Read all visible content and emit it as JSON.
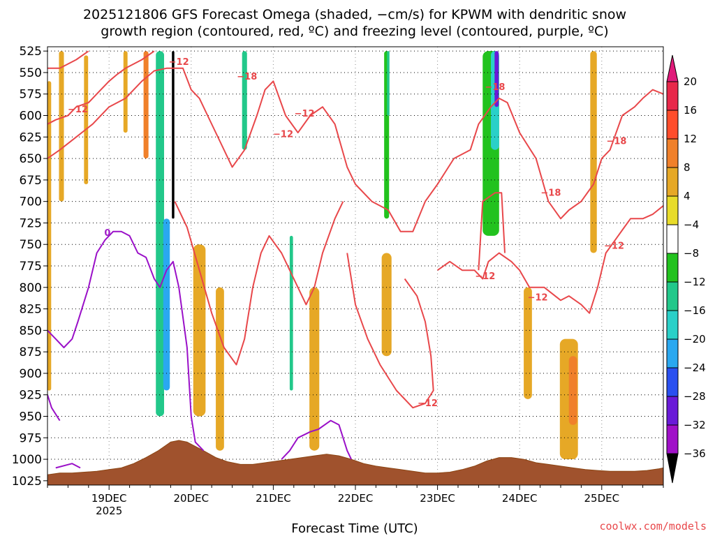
{
  "chart_data": {
    "type": "heatmap",
    "title_line1": "2025121806 GFS Forecast Omega (shaded, −cm/s) for KPWM with dendritic snow",
    "title_line2": "growth region (contoured, red, ºC) and freezing level (contoured, purple, ºC)",
    "xlabel": "Forecast Time (UTC)",
    "credit": "coolwx.com/models",
    "y_ticks": [
      "525",
      "550",
      "575",
      "600",
      "625",
      "650",
      "675",
      "700",
      "725",
      "750",
      "775",
      "800",
      "825",
      "850",
      "875",
      "900",
      "925",
      "950",
      "975",
      "1000",
      "1025"
    ],
    "y_range_hpa": [
      525,
      1025
    ],
    "x_range_days": [
      18.25,
      25.75
    ],
    "x_ticks": [
      {
        "day": 19,
        "label": "19DEC",
        "sub": "2025"
      },
      {
        "day": 20,
        "label": "20DEC",
        "sub": ""
      },
      {
        "day": 21,
        "label": "21DEC",
        "sub": ""
      },
      {
        "day": 22,
        "label": "22DEC",
        "sub": ""
      },
      {
        "day": 23,
        "label": "23DEC",
        "sub": ""
      },
      {
        "day": 24,
        "label": "24DEC",
        "sub": ""
      },
      {
        "day": 25,
        "label": "25DEC",
        "sub": ""
      }
    ],
    "colorbar": {
      "labels": [
        "20",
        "16",
        "12",
        "8",
        "4",
        "−4",
        "−8",
        "−12",
        "−16",
        "−20",
        "−24",
        "−28",
        "−32",
        "−36"
      ],
      "colors": [
        "#e8284a",
        "#ff4d2b",
        "#f0802a",
        "#e6a826",
        "#e8dc2a",
        "#ffffff",
        "#22c21e",
        "#22c88a",
        "#2ad0c8",
        "#2aa8f0",
        "#2a50f0",
        "#6a1ad8",
        "#a010c8",
        "#b0b0b0",
        "#000000"
      ],
      "top_color": "#e01a7a"
    },
    "contour_labels": [
      {
        "text": "−12",
        "day": 19.85,
        "p": 538,
        "color": "#e8474a"
      },
      {
        "text": "−12",
        "day": 18.62,
        "p": 593,
        "color": "#e8474a"
      },
      {
        "text": "−18",
        "day": 20.68,
        "p": 555,
        "color": "#e8474a"
      },
      {
        "text": "−12",
        "day": 21.12,
        "p": 622,
        "color": "#e8474a"
      },
      {
        "text": "−12",
        "day": 21.38,
        "p": 598,
        "color": "#e8474a"
      },
      {
        "text": "−18",
        "day": 23.7,
        "p": 567,
        "color": "#e8474a"
      },
      {
        "text": "−18",
        "day": 25.18,
        "p": 630,
        "color": "#e8474a"
      },
      {
        "text": "−18",
        "day": 24.38,
        "p": 690,
        "color": "#e8474a"
      },
      {
        "text": "−12",
        "day": 25.15,
        "p": 752,
        "color": "#e8474a"
      },
      {
        "text": "−12",
        "day": 23.58,
        "p": 787,
        "color": "#e8474a"
      },
      {
        "text": "−12",
        "day": 24.22,
        "p": 812,
        "color": "#e8474a"
      },
      {
        "text": "−12",
        "day": 22.88,
        "p": 935,
        "color": "#e8474a"
      },
      {
        "text": "0",
        "day": 18.98,
        "p": 737,
        "color": "#a020c8"
      }
    ],
    "shading_blobs": [
      {
        "day": 18.42,
        "p1": 525,
        "p2": 700,
        "w": 0.06,
        "v": 8
      },
      {
        "day": 18.27,
        "p1": 560,
        "p2": 920,
        "w": 0.05,
        "v": 5
      },
      {
        "day": 18.72,
        "p1": 530,
        "p2": 680,
        "w": 0.05,
        "v": 5
      },
      {
        "day": 19.2,
        "p1": 525,
        "p2": 620,
        "w": 0.05,
        "v": 5
      },
      {
        "day": 19.55,
        "p1": 525,
        "p2": 960,
        "w": 0.22,
        "v": -6
      },
      {
        "day": 19.62,
        "p1": 525,
        "p2": 950,
        "w": 0.1,
        "v": -14
      },
      {
        "day": 19.7,
        "p1": 720,
        "p2": 920,
        "w": 0.08,
        "v": -22
      },
      {
        "day": 19.78,
        "p1": 525,
        "p2": 720,
        "w": 0.03,
        "v": -38
      },
      {
        "day": 19.45,
        "p1": 525,
        "p2": 650,
        "w": 0.06,
        "v": 9
      },
      {
        "day": 20.1,
        "p1": 750,
        "p2": 950,
        "w": 0.15,
        "v": 6
      },
      {
        "day": 20.35,
        "p1": 800,
        "p2": 990,
        "w": 0.1,
        "v": 5
      },
      {
        "day": 20.6,
        "p1": 525,
        "p2": 720,
        "w": 0.16,
        "v": -7
      },
      {
        "day": 20.65,
        "p1": 525,
        "p2": 640,
        "w": 0.06,
        "v": -13
      },
      {
        "day": 21.2,
        "p1": 525,
        "p2": 950,
        "w": 0.12,
        "v": -7
      },
      {
        "day": 21.22,
        "p1": 740,
        "p2": 920,
        "w": 0.04,
        "v": -14
      },
      {
        "day": 21.5,
        "p1": 800,
        "p2": 990,
        "w": 0.12,
        "v": 5
      },
      {
        "day": 21.9,
        "p1": 525,
        "p2": 640,
        "w": 0.05,
        "v": -7
      },
      {
        "day": 22.38,
        "p1": 760,
        "p2": 880,
        "w": 0.12,
        "v": 6
      },
      {
        "day": 22.38,
        "p1": 525,
        "p2": 720,
        "w": 0.06,
        "v": -8
      },
      {
        "day": 22.4,
        "p1": 525,
        "p2": 600,
        "w": 0.03,
        "v": -14
      },
      {
        "day": 23.65,
        "p1": 525,
        "p2": 740,
        "w": 0.2,
        "v": -8
      },
      {
        "day": 23.7,
        "p1": 525,
        "p2": 640,
        "w": 0.1,
        "v": -16
      },
      {
        "day": 23.72,
        "p1": 525,
        "p2": 590,
        "w": 0.05,
        "v": -28
      },
      {
        "day": 24.2,
        "p1": 525,
        "p2": 720,
        "w": 0.1,
        "v": -7
      },
      {
        "day": 24.6,
        "p1": 860,
        "p2": 1000,
        "w": 0.22,
        "v": 6
      },
      {
        "day": 24.65,
        "p1": 880,
        "p2": 960,
        "w": 0.1,
        "v": 12
      },
      {
        "day": 24.1,
        "p1": 800,
        "p2": 930,
        "w": 0.1,
        "v": 5
      },
      {
        "day": 24.9,
        "p1": 525,
        "p2": 760,
        "w": 0.08,
        "v": 6
      },
      {
        "day": 25.7,
        "p1": 525,
        "p2": 780,
        "w": 0.05,
        "v": -7
      }
    ],
    "red_contours": [
      [
        [
          18.25,
          545
        ],
        [
          18.4,
          545
        ],
        [
          18.6,
          535
        ],
        [
          18.75,
          525
        ]
      ],
      [
        [
          18.25,
          610
        ],
        [
          18.35,
          605
        ],
        [
          18.5,
          600
        ],
        [
          18.6,
          590
        ],
        [
          18.75,
          585
        ],
        [
          18.9,
          570
        ],
        [
          19.0,
          560
        ],
        [
          19.1,
          552
        ],
        [
          19.2,
          545
        ],
        [
          19.3,
          540
        ],
        [
          19.4,
          535
        ],
        [
          19.55,
          525
        ]
      ],
      [
        [
          18.25,
          650
        ],
        [
          18.4,
          640
        ],
        [
          18.6,
          625
        ],
        [
          18.8,
          610
        ],
        [
          19.0,
          590
        ],
        [
          19.2,
          580
        ],
        [
          19.4,
          560
        ],
        [
          19.55,
          548
        ],
        [
          19.7,
          545
        ],
        [
          19.9,
          545
        ],
        [
          20.0,
          570
        ],
        [
          20.1,
          580
        ],
        [
          20.2,
          600
        ],
        [
          20.35,
          630
        ],
        [
          20.5,
          660
        ],
        [
          20.65,
          640
        ],
        [
          20.8,
          600
        ],
        [
          20.9,
          570
        ],
        [
          21.0,
          560
        ],
        [
          21.15,
          600
        ],
        [
          21.3,
          620
        ],
        [
          21.45,
          600
        ],
        [
          21.6,
          590
        ],
        [
          21.75,
          610
        ],
        [
          21.9,
          660
        ],
        [
          22.0,
          680
        ],
        [
          22.2,
          700
        ],
        [
          22.4,
          710
        ],
        [
          22.55,
          735
        ],
        [
          22.7,
          735
        ],
        [
          22.85,
          700
        ],
        [
          23.0,
          680
        ],
        [
          23.2,
          650
        ],
        [
          23.4,
          640
        ],
        [
          23.5,
          610
        ],
        [
          23.65,
          590
        ],
        [
          23.75,
          580
        ],
        [
          23.85,
          585
        ],
        [
          24.0,
          620
        ],
        [
          24.2,
          650
        ],
        [
          24.35,
          700
        ],
        [
          24.5,
          720
        ],
        [
          24.6,
          710
        ],
        [
          24.75,
          700
        ],
        [
          24.9,
          680
        ],
        [
          25.0,
          650
        ],
        [
          25.1,
          640
        ],
        [
          25.25,
          600
        ],
        [
          25.4,
          590
        ],
        [
          25.5,
          580
        ],
        [
          25.62,
          570
        ],
        [
          25.75,
          575
        ]
      ],
      [
        [
          19.8,
          700
        ],
        [
          19.95,
          730
        ],
        [
          20.1,
          780
        ],
        [
          20.25,
          830
        ],
        [
          20.4,
          870
        ],
        [
          20.55,
          890
        ],
        [
          20.65,
          860
        ],
        [
          20.75,
          800
        ],
        [
          20.85,
          760
        ],
        [
          20.95,
          740
        ],
        [
          21.1,
          760
        ],
        [
          21.25,
          790
        ],
        [
          21.4,
          820
        ],
        [
          21.5,
          800
        ],
        [
          21.6,
          760
        ],
        [
          21.75,
          720
        ],
        [
          21.85,
          700
        ]
      ],
      [
        [
          21.9,
          760
        ],
        [
          22.0,
          820
        ],
        [
          22.15,
          860
        ],
        [
          22.3,
          890
        ],
        [
          22.5,
          920
        ],
        [
          22.7,
          940
        ],
        [
          22.85,
          935
        ],
        [
          22.95,
          920
        ],
        [
          22.92,
          880
        ],
        [
          22.85,
          840
        ],
        [
          22.75,
          810
        ],
        [
          22.6,
          790
        ]
      ],
      [
        [
          23.0,
          780
        ],
        [
          23.15,
          770
        ],
        [
          23.3,
          780
        ],
        [
          23.45,
          780
        ],
        [
          23.55,
          790
        ],
        [
          23.62,
          770
        ],
        [
          23.75,
          760
        ],
        [
          23.9,
          770
        ],
        [
          24.0,
          780
        ],
        [
          24.12,
          800
        ],
        [
          24.3,
          800
        ],
        [
          24.5,
          815
        ],
        [
          24.6,
          810
        ],
        [
          24.75,
          820
        ],
        [
          24.85,
          830
        ],
        [
          24.95,
          800
        ],
        [
          25.05,
          760
        ],
        [
          25.2,
          740
        ],
        [
          25.35,
          720
        ],
        [
          25.5,
          720
        ],
        [
          25.62,
          715
        ],
        [
          25.75,
          705
        ]
      ],
      [
        [
          23.5,
          780
        ],
        [
          23.55,
          700
        ],
        [
          23.7,
          690
        ],
        [
          23.78,
          690
        ],
        [
          23.82,
          760
        ]
      ]
    ],
    "purple_contours": [
      [
        [
          18.25,
          850
        ],
        [
          18.35,
          860
        ],
        [
          18.45,
          870
        ],
        [
          18.55,
          860
        ],
        [
          18.62,
          840
        ],
        [
          18.75,
          800
        ],
        [
          18.85,
          760
        ],
        [
          18.95,
          745
        ],
        [
          19.05,
          735
        ],
        [
          19.15,
          735
        ],
        [
          19.25,
          740
        ],
        [
          19.35,
          760
        ],
        [
          19.45,
          765
        ],
        [
          19.55,
          790
        ],
        [
          19.62,
          800
        ],
        [
          19.7,
          780
        ],
        [
          19.78,
          770
        ],
        [
          19.85,
          800
        ],
        [
          19.95,
          870
        ],
        [
          20.0,
          950
        ],
        [
          20.05,
          980
        ],
        [
          20.15,
          990
        ]
      ],
      [
        [
          18.25,
          925
        ],
        [
          18.3,
          940
        ],
        [
          18.4,
          955
        ]
      ],
      [
        [
          21.1,
          1000
        ],
        [
          21.2,
          990
        ],
        [
          21.3,
          975
        ],
        [
          21.45,
          968
        ],
        [
          21.55,
          965
        ],
        [
          21.7,
          955
        ],
        [
          21.8,
          960
        ],
        [
          21.9,
          990
        ],
        [
          21.95,
          1000
        ]
      ],
      [
        [
          18.35,
          1010
        ],
        [
          18.55,
          1005
        ],
        [
          18.65,
          1010
        ]
      ]
    ],
    "terrain": [
      [
        18.25,
        1018
      ],
      [
        18.4,
        1016
      ],
      [
        18.55,
        1016
      ],
      [
        18.7,
        1015
      ],
      [
        18.85,
        1014
      ],
      [
        19.0,
        1012
      ],
      [
        19.15,
        1010
      ],
      [
        19.3,
        1005
      ],
      [
        19.45,
        998
      ],
      [
        19.6,
        990
      ],
      [
        19.75,
        980
      ],
      [
        19.85,
        978
      ],
      [
        19.95,
        980
      ],
      [
        20.05,
        985
      ],
      [
        20.15,
        990
      ],
      [
        20.3,
        998
      ],
      [
        20.45,
        1003
      ],
      [
        20.6,
        1006
      ],
      [
        20.75,
        1006
      ],
      [
        20.9,
        1004
      ],
      [
        21.05,
        1002
      ],
      [
        21.2,
        1000
      ],
      [
        21.35,
        998
      ],
      [
        21.5,
        996
      ],
      [
        21.65,
        994
      ],
      [
        21.8,
        996
      ],
      [
        21.95,
        1000
      ],
      [
        22.1,
        1005
      ],
      [
        22.25,
        1008
      ],
      [
        22.4,
        1010
      ],
      [
        22.55,
        1012
      ],
      [
        22.7,
        1014
      ],
      [
        22.85,
        1016
      ],
      [
        23.0,
        1016
      ],
      [
        23.15,
        1015
      ],
      [
        23.3,
        1012
      ],
      [
        23.45,
        1008
      ],
      [
        23.6,
        1002
      ],
      [
        23.75,
        998
      ],
      [
        23.9,
        998
      ],
      [
        24.05,
        1000
      ],
      [
        24.2,
        1004
      ],
      [
        24.35,
        1006
      ],
      [
        24.5,
        1008
      ],
      [
        24.65,
        1010
      ],
      [
        24.8,
        1012
      ],
      [
        24.95,
        1013
      ],
      [
        25.1,
        1014
      ],
      [
        25.25,
        1014
      ],
      [
        25.4,
        1014
      ],
      [
        25.55,
        1013
      ],
      [
        25.7,
        1011
      ],
      [
        25.75,
        1010
      ]
    ]
  }
}
